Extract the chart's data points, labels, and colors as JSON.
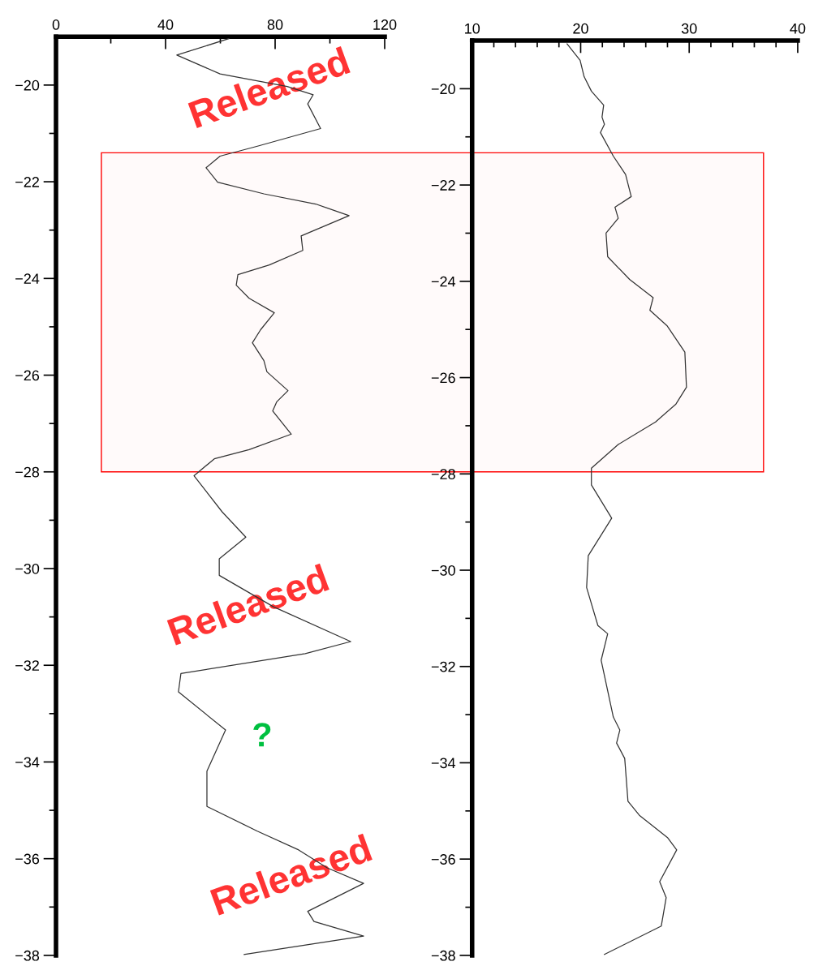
{
  "chart_data": [
    {
      "type": "line",
      "xlim": [
        0,
        120
      ],
      "ylim": [
        -38,
        -19
      ],
      "xticks": [
        0,
        {
          "value": 20,
          "label": null
        },
        40,
        {
          "value": 60,
          "label": null
        },
        80,
        {
          "value": 100,
          "label": null
        },
        120
      ],
      "yticks": [
        {
          "value": -38,
          "label": "−38"
        },
        {
          "value": -37,
          "label": null
        },
        {
          "value": -36,
          "label": "−36"
        },
        {
          "value": -35,
          "label": null
        },
        {
          "value": -34,
          "label": "−34"
        },
        {
          "value": -33,
          "label": null
        },
        {
          "value": -32,
          "label": "−32"
        },
        {
          "value": -31,
          "label": null
        },
        {
          "value": -30,
          "label": "−30"
        },
        {
          "value": -29,
          "label": null
        },
        {
          "value": -28,
          "label": "−28"
        },
        {
          "value": -27,
          "label": null
        },
        {
          "value": -26,
          "label": "−26"
        },
        {
          "value": -25,
          "label": null
        },
        {
          "value": -24,
          "label": "−24"
        },
        {
          "value": -23,
          "label": null
        },
        {
          "value": -22,
          "label": "−22"
        },
        {
          "value": -21,
          "label": null
        },
        {
          "value": -20,
          "label": "−20"
        }
      ],
      "grid": false,
      "legend": false,
      "marker": "none",
      "line_style": "solid",
      "series": [
        {
          "color": "#333333",
          "x": [
            63.1,
            44.1,
            59.9,
            84.4,
            93.9,
            91.9,
            96.6,
            73.8,
            59.9,
            54.8,
            59.0,
            75.9,
            94.8,
            107.0,
            89.5,
            90.1,
            77.9,
            66.4,
            65.8,
            70.5,
            79.7,
            74.7,
            71.7,
            75.9,
            77.0,
            84.7,
            80.6,
            79.1,
            85.9,
            70.5,
            57.8,
            50.4,
            60.7,
            69.3,
            59.6,
            59.6,
            79.4,
            107.6,
            91.0,
            45.6,
            44.7,
            61.9,
            55.1,
            55.1,
            73.5,
            88.6,
            99.0,
            112.3,
            91.9,
            94.2,
            112.3,
            68.7
          ],
          "values": [
            -19.04,
            -19.38,
            -19.77,
            -20.03,
            -20.2,
            -20.39,
            -20.9,
            -21.26,
            -21.47,
            -21.71,
            -22.01,
            -22.25,
            -22.46,
            -22.7,
            -23.12,
            -23.42,
            -23.72,
            -23.92,
            -24.14,
            -24.41,
            -24.71,
            -25.06,
            -25.33,
            -25.7,
            -25.93,
            -26.32,
            -26.55,
            -26.74,
            -27.22,
            -27.54,
            -27.73,
            -28.08,
            -28.83,
            -29.35,
            -29.8,
            -30.14,
            -30.79,
            -31.51,
            -31.76,
            -32.17,
            -32.55,
            -33.34,
            -34.19,
            -34.92,
            -35.43,
            -35.82,
            -36.19,
            -36.51,
            -37.09,
            -37.3,
            -37.6,
            -37.98
          ]
        }
      ],
      "bands": [
        {
          "axis": "y",
          "from": -28.0,
          "to": -21.4,
          "color": "#ff0000"
        }
      ],
      "annotations": [
        "Released",
        "Released",
        "Released",
        "?"
      ]
    },
    {
      "type": "line",
      "xlim": [
        10,
        40
      ],
      "ylim": [
        -38,
        -19
      ],
      "xticks": [
        10,
        {
          "value": 12,
          "label": null
        },
        {
          "value": 14,
          "label": null
        },
        {
          "value": 16,
          "label": null
        },
        {
          "value": 18,
          "label": null
        },
        20,
        {
          "value": 22,
          "label": null
        },
        {
          "value": 24,
          "label": null
        },
        {
          "value": 26,
          "label": null
        },
        {
          "value": 28,
          "label": null
        },
        30,
        {
          "value": 32,
          "label": null
        },
        {
          "value": 34,
          "label": null
        },
        {
          "value": 36,
          "label": null
        },
        {
          "value": 38,
          "label": null
        },
        40
      ],
      "yticks": [
        {
          "value": -38,
          "label": "−38"
        },
        {
          "value": -37,
          "label": null
        },
        {
          "value": -36,
          "label": "−36"
        },
        {
          "value": -35,
          "label": null
        },
        {
          "value": -34,
          "label": "−34"
        },
        {
          "value": -33,
          "label": null
        },
        {
          "value": -32,
          "label": "−32"
        },
        {
          "value": -31,
          "label": null
        },
        {
          "value": -30,
          "label": "−30"
        },
        {
          "value": -29,
          "label": null
        },
        {
          "value": -28,
          "label": "−28"
        },
        {
          "value": -27,
          "label": null
        },
        {
          "value": -26,
          "label": "−26"
        },
        {
          "value": -25,
          "label": null
        },
        {
          "value": -24,
          "label": "−24"
        },
        {
          "value": -23,
          "label": null
        },
        {
          "value": -22,
          "label": "−22"
        },
        {
          "value": -21,
          "label": null
        },
        {
          "value": -20,
          "label": "−20"
        }
      ],
      "grid": false,
      "legend": false,
      "marker": "none",
      "line_style": "solid",
      "series": [
        {
          "color": "#333333",
          "x": [
            18.75,
            19.95,
            20.32,
            20.99,
            22.12,
            21.97,
            22.19,
            21.82,
            23.01,
            24.14,
            24.66,
            23.16,
            23.46,
            22.34,
            22.49,
            24.51,
            26.68,
            26.38,
            27.95,
            29.6,
            29.75,
            28.78,
            26.9,
            23.46,
            20.99,
            20.99,
            22.86,
            20.7,
            20.55,
            21.59,
            22.49,
            21.89,
            23.01,
            23.61,
            23.31,
            24.06,
            24.36,
            25.41,
            28.03,
            28.85,
            27.28,
            27.88,
            27.43,
            22.19
          ],
          "values": [
            -19.07,
            -19.41,
            -19.75,
            -20.05,
            -20.34,
            -20.59,
            -20.74,
            -20.91,
            -21.4,
            -21.78,
            -22.24,
            -22.46,
            -22.69,
            -23.0,
            -23.49,
            -23.96,
            -24.34,
            -24.6,
            -24.92,
            -25.47,
            -26.2,
            -26.55,
            -26.92,
            -27.39,
            -27.88,
            -28.23,
            -28.92,
            -29.7,
            -30.36,
            -31.15,
            -31.32,
            -31.87,
            -33.05,
            -33.32,
            -33.59,
            -33.91,
            -34.8,
            -35.09,
            -35.56,
            -35.81,
            -36.47,
            -36.8,
            -37.39,
            -37.98
          ]
        }
      ]
    }
  ]
}
